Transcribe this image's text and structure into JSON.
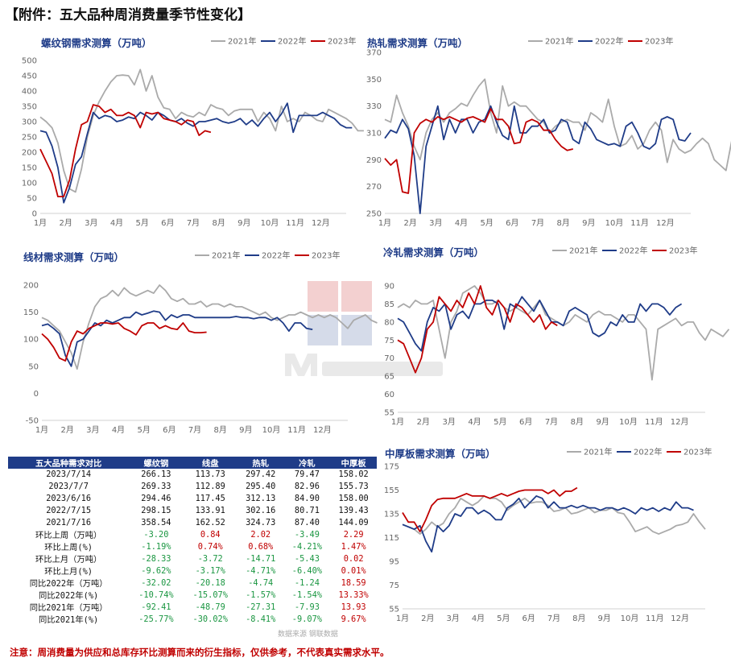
{
  "page": {
    "title": "【附件：五大品种周消费量季节性变化】"
  },
  "legend_labels": [
    "2021年",
    "2022年",
    "2023年"
  ],
  "series_colors": {
    "2021年": "#aaaaaa",
    "2022年": "#1f3c88",
    "2023年": "#c00000"
  },
  "month_labels": [
    "1月",
    "2月",
    "3月",
    "4月",
    "5月",
    "6月",
    "7月",
    "8月",
    "9月",
    "10月",
    "11月",
    "12月"
  ],
  "chart_data": [
    {
      "type": "line",
      "title": "螺纹钢需求测算（万吨）",
      "ylim": [
        0,
        500
      ],
      "yticks": [
        0,
        50,
        100,
        150,
        200,
        250,
        300,
        350,
        400,
        450,
        500
      ],
      "series": [
        {
          "name": "2021年",
          "values": [
            315,
            300,
            280,
            230,
            140,
            80,
            70,
            145,
            250,
            320,
            365,
            400,
            430,
            450,
            452,
            450,
            420,
            470,
            400,
            450,
            380,
            345,
            340,
            310,
            330,
            320,
            315,
            330,
            320,
            355,
            345,
            340,
            320,
            335,
            340,
            340,
            340,
            300,
            330,
            310,
            270,
            350,
            300,
            310,
            300,
            330,
            320,
            305,
            300,
            340,
            330,
            320,
            310,
            295,
            270,
            270
          ]
        },
        {
          "name": "2022年",
          "values": [
            270,
            265,
            220,
            150,
            35,
            85,
            160,
            185,
            260,
            330,
            310,
            320,
            315,
            300,
            305,
            315,
            310,
            330,
            320,
            305,
            330,
            320,
            305,
            300,
            310,
            295,
            285,
            300,
            300,
            305,
            310,
            300,
            295,
            300,
            310,
            290,
            305,
            285,
            310,
            330,
            300,
            325,
            360,
            265,
            320,
            320,
            320,
            320,
            330,
            320,
            310,
            290,
            280,
            280
          ]
        },
        {
          "name": "2023年",
          "values": [
            210,
            170,
            130,
            55,
            55,
            110,
            210,
            290,
            300,
            355,
            350,
            330,
            340,
            320,
            320,
            330,
            320,
            280,
            330,
            325,
            330,
            310,
            305,
            300,
            290,
            305,
            300,
            255,
            270,
            265
          ]
        }
      ]
    },
    {
      "type": "line",
      "title": "热轧需求测算（万吨）",
      "ylim": [
        250,
        370
      ],
      "yticks": [
        250,
        270,
        290,
        310,
        330,
        350,
        370
      ],
      "series": [
        {
          "name": "2021年",
          "values": [
            320,
            318,
            338,
            325,
            315,
            300,
            290,
            310,
            320,
            325,
            318,
            325,
            328,
            332,
            330,
            338,
            345,
            350,
            325,
            310,
            345,
            330,
            333,
            330,
            330,
            325,
            320,
            318,
            310,
            315,
            318,
            320,
            318,
            318,
            312,
            325,
            322,
            318,
            335,
            315,
            300,
            302,
            308,
            298,
            302,
            312,
            318,
            312,
            288,
            305,
            298,
            295,
            297,
            302,
            306,
            302,
            290,
            286,
            282,
            305,
            300,
            306,
            307
          ]
        },
        {
          "name": "2022年",
          "values": [
            306,
            312,
            310,
            320,
            313,
            293,
            250,
            300,
            315,
            330,
            305,
            320,
            310,
            320,
            320,
            310,
            318,
            320,
            330,
            318,
            308,
            305,
            330,
            310,
            310,
            315,
            315,
            320,
            310,
            312,
            320,
            318,
            305,
            302,
            318,
            313,
            305,
            303,
            301,
            302,
            300,
            315,
            318,
            310,
            300,
            298,
            302,
            320,
            322,
            320,
            305,
            304,
            310
          ]
        },
        {
          "name": "2023年",
          "values": [
            291,
            286,
            290,
            266,
            265,
            310,
            317,
            320,
            318,
            322,
            320,
            322,
            320,
            318,
            321,
            322,
            320,
            318,
            328,
            320,
            320,
            315,
            302,
            303,
            318,
            320,
            318,
            312,
            312,
            305,
            300,
            297,
            298
          ]
        }
      ]
    },
    {
      "type": "line",
      "title": "线材需求测算（万吨）",
      "ylim": [
        -50,
        200
      ],
      "yticks": [
        -50,
        0,
        50,
        100,
        150,
        200
      ],
      "series": [
        {
          "name": "2021年",
          "values": [
            140,
            135,
            125,
            115,
            95,
            75,
            45,
            95,
            130,
            160,
            175,
            180,
            190,
            180,
            195,
            185,
            180,
            185,
            190,
            185,
            200,
            190,
            175,
            170,
            175,
            165,
            165,
            170,
            160,
            165,
            165,
            160,
            165,
            160,
            160,
            155,
            150,
            145,
            150,
            140,
            135,
            140,
            145,
            145,
            150,
            145,
            140,
            145,
            140,
            145,
            140,
            130,
            120,
            135,
            140,
            145,
            135,
            130
          ]
        },
        {
          "name": "2022年",
          "values": [
            125,
            128,
            120,
            110,
            70,
            50,
            95,
            100,
            115,
            130,
            125,
            135,
            130,
            135,
            140,
            140,
            150,
            145,
            148,
            152,
            150,
            135,
            145,
            140,
            145,
            145,
            140,
            140,
            140,
            140,
            140,
            140,
            140,
            142,
            140,
            140,
            138,
            140,
            140,
            135,
            140,
            130,
            115,
            130,
            130,
            120,
            118
          ]
        },
        {
          "name": "2023年",
          "values": [
            110,
            100,
            85,
            65,
            60,
            95,
            115,
            110,
            120,
            125,
            130,
            130,
            128,
            130,
            120,
            115,
            108,
            125,
            130,
            130,
            120,
            125,
            120,
            118,
            130,
            115,
            112,
            112,
            113
          ]
        }
      ]
    },
    {
      "type": "line",
      "title": "冷轧需求测算（万吨）",
      "ylim": [
        55,
        90
      ],
      "yticks": [
        55,
        60,
        65,
        70,
        75,
        80,
        85,
        90
      ],
      "series": [
        {
          "name": "2021年",
          "values": [
            84,
            85,
            84,
            86,
            85,
            85,
            86,
            78,
            70,
            80,
            83,
            88,
            89,
            90,
            88,
            85,
            85,
            86,
            84,
            83,
            84,
            83,
            82,
            84,
            86,
            82,
            81,
            80,
            79,
            80,
            82,
            81,
            80,
            82,
            83,
            82,
            82,
            81,
            80,
            82,
            82,
            80,
            78,
            64,
            78,
            79,
            80,
            81,
            79,
            80,
            80,
            77,
            75,
            78,
            77,
            76,
            78
          ]
        },
        {
          "name": "2022年",
          "values": [
            81,
            80,
            77,
            74,
            72,
            80,
            84,
            83,
            85,
            78,
            82,
            83,
            81,
            85,
            85,
            86,
            86,
            85,
            78,
            85,
            84,
            87,
            85,
            83,
            86,
            83,
            80,
            80,
            79,
            83,
            84,
            83,
            82,
            77,
            76,
            77,
            80,
            79,
            82,
            80,
            80,
            85,
            83,
            85,
            85,
            84,
            82,
            84,
            85
          ]
        },
        {
          "name": "2023年",
          "values": [
            75,
            74,
            70,
            66,
            70,
            78,
            80,
            87,
            85,
            83,
            86,
            84,
            88,
            85,
            90,
            84,
            82,
            86,
            84,
            80,
            85,
            84,
            82,
            80,
            82,
            78,
            80,
            79
          ]
        }
      ]
    },
    {
      "type": "line",
      "title": "中厚板需求测算（万吨）",
      "ylim": [
        55,
        175
      ],
      "yticks": [
        55,
        75,
        95,
        115,
        135,
        155,
        175
      ],
      "series": [
        {
          "name": "2021年",
          "values": [
            126,
            124,
            122,
            118,
            122,
            128,
            124,
            127,
            135,
            140,
            148,
            145,
            142,
            145,
            150,
            148,
            148,
            145,
            138,
            142,
            145,
            148,
            144,
            145,
            145,
            142,
            137,
            138,
            140,
            135,
            136,
            138,
            140,
            136,
            138,
            138,
            140,
            136,
            135,
            128,
            120,
            122,
            124,
            120,
            118,
            120,
            122,
            125,
            126,
            128,
            135,
            128,
            122
          ]
        },
        {
          "name": "2022年",
          "values": [
            126,
            124,
            122,
            125,
            112,
            103,
            125,
            120,
            125,
            135,
            133,
            140,
            140,
            135,
            138,
            135,
            130,
            130,
            140,
            143,
            148,
            140,
            145,
            150,
            148,
            140,
            145,
            140,
            140,
            142,
            140,
            142,
            140,
            140,
            138,
            140,
            140,
            138,
            140,
            138,
            135,
            140,
            138,
            140,
            137,
            140,
            138,
            145,
            140,
            140,
            138
          ]
        },
        {
          "name": "2023年",
          "values": [
            136,
            128,
            128,
            120,
            130,
            142,
            147,
            148,
            148,
            148,
            150,
            152,
            150,
            150,
            150,
            148,
            150,
            152,
            150,
            152,
            154,
            155,
            155,
            155,
            155,
            152,
            155,
            150,
            154,
            154,
            157
          ]
        }
      ]
    }
  ],
  "table": {
    "headers": [
      "五大品种需求对比",
      "螺纹钢",
      "线盘",
      "热轧",
      "冷轧",
      "中厚板"
    ],
    "rows": [
      [
        "2023/7/14",
        "266.13",
        "113.73",
        "297.42",
        "79.47",
        "158.02"
      ],
      [
        "2023/7/7",
        "269.33",
        "112.89",
        "295.40",
        "82.96",
        "155.73"
      ],
      [
        "2023/6/16",
        "294.46",
        "117.45",
        "312.13",
        "84.90",
        "158.00"
      ],
      [
        "2022/7/15",
        "298.15",
        "133.91",
        "302.16",
        "80.71",
        "139.43"
      ],
      [
        "2021/7/16",
        "358.54",
        "162.52",
        "324.73",
        "87.40",
        "144.09"
      ],
      [
        "环比上周（万吨）",
        "-3.20",
        "0.84",
        "2.02",
        "-3.49",
        "2.29"
      ],
      [
        "环比上周(%)",
        "-1.19%",
        "0.74%",
        "0.68%",
        "-4.21%",
        "1.47%"
      ],
      [
        "环比上月（万吨）",
        "-28.33",
        "-3.72",
        "-14.71",
        "-5.43",
        "0.02"
      ],
      [
        "环比上月(%)",
        "-9.62%",
        "-3.17%",
        "-4.71%",
        "-6.40%",
        "0.01%"
      ],
      [
        "同比2022年（万吨）",
        "-32.02",
        "-20.18",
        "-4.74",
        "-1.24",
        "18.59"
      ],
      [
        "同比2022年(%)",
        "-10.74%",
        "-15.07%",
        "-1.57%",
        "-1.54%",
        "13.33%"
      ],
      [
        "同比2021年（万吨）",
        "-92.41",
        "-48.79",
        "-27.31",
        "-7.93",
        "13.93"
      ],
      [
        "同比2021年(%)",
        "-25.77%",
        "-30.02%",
        "-8.41%",
        "-9.07%",
        "9.67%"
      ]
    ]
  },
  "source_text": "数据来源    钢联数据",
  "footer_note": "注意：周消费量为供应和总库存环比测算而来的衍生指标，仅供参考，不代表真实需求水平。"
}
